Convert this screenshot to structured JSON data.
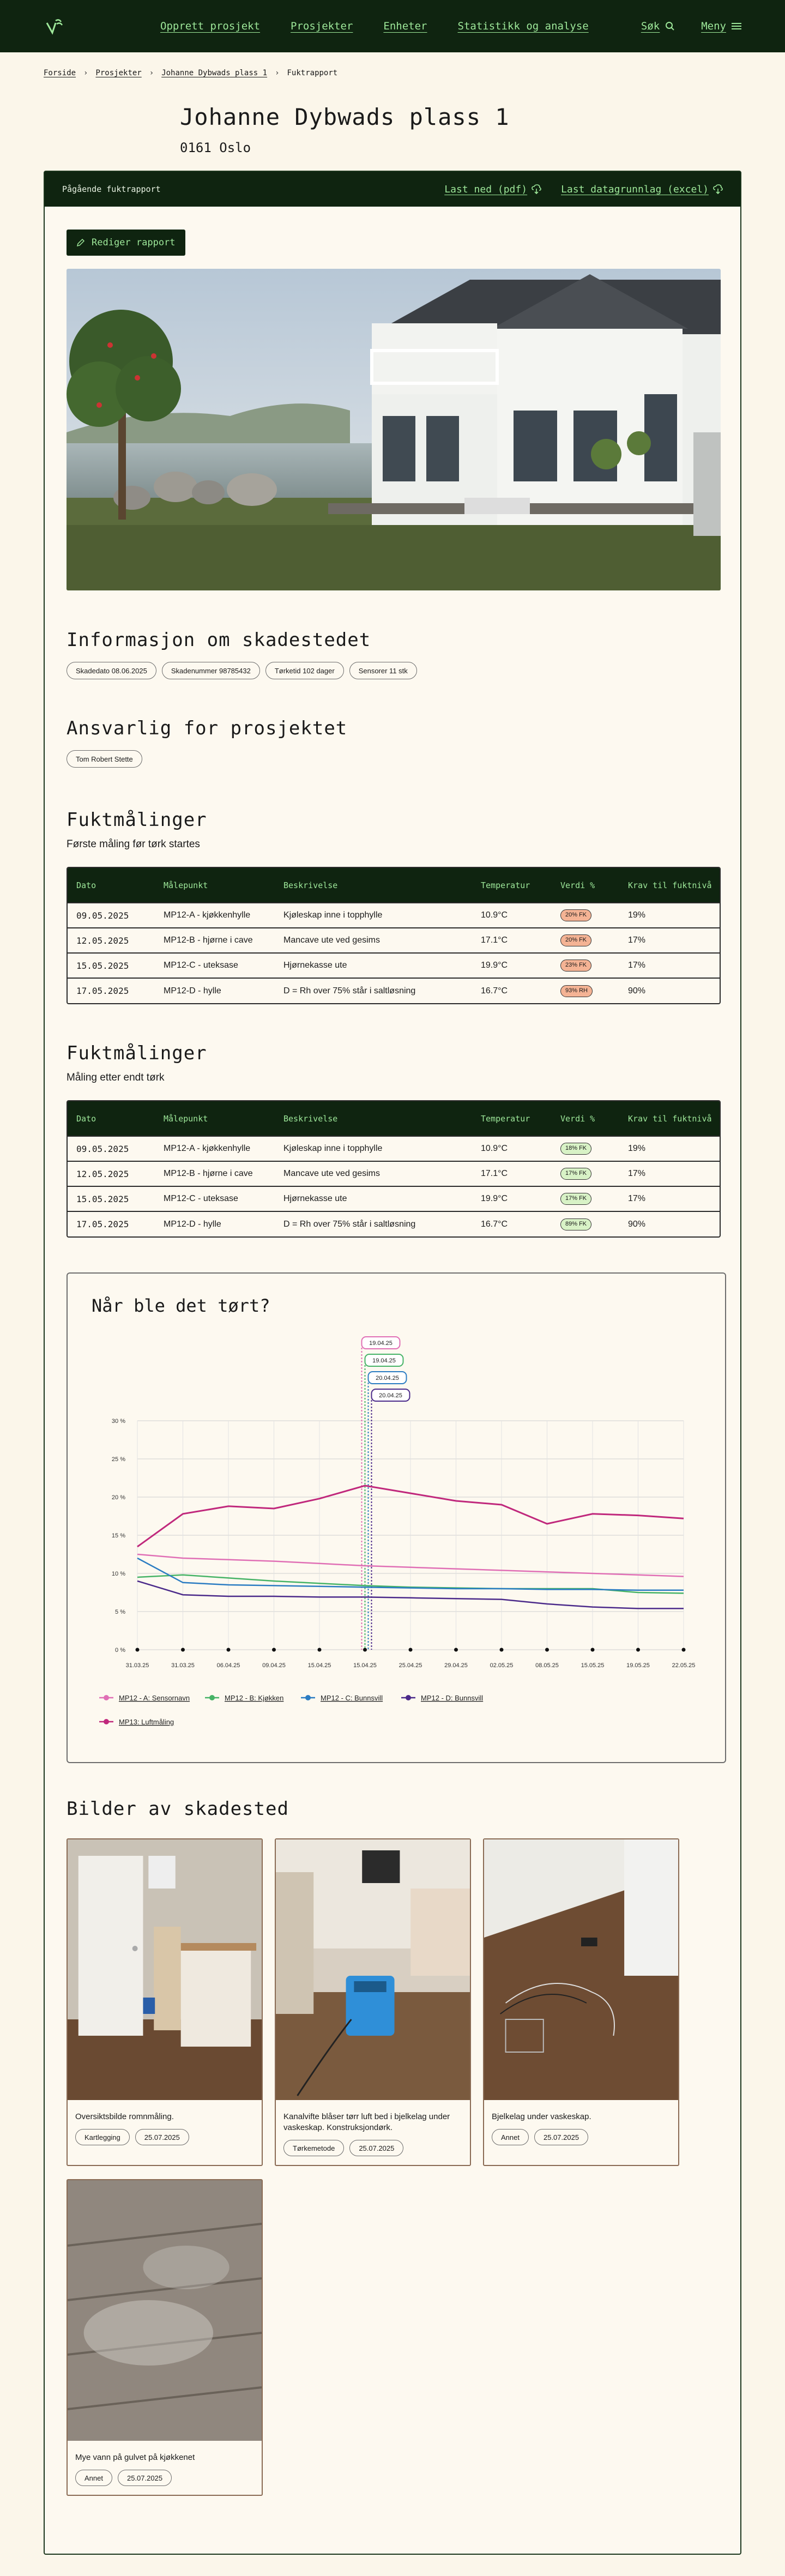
{
  "nav": {
    "items": [
      "Opprett prosjekt",
      "Prosjekter",
      "Enheter",
      "Statistikk og analyse"
    ],
    "search": "Søk",
    "menu": "Meny"
  },
  "breadcrumb": [
    "Forside",
    "Prosjekter",
    "Johanne Dybwads plass 1",
    "Fuktrapport"
  ],
  "project": {
    "title": "Johanne Dybwads plass 1",
    "address": "0161 Oslo"
  },
  "report_bar": {
    "label": "Pågående fuktrapport",
    "download_pdf": "Last ned (pdf)",
    "download_excel": "Last datagrunnlag (excel)"
  },
  "edit_button": "Rediger rapport",
  "info": {
    "title": "Informasjon om skadestedet",
    "chips": [
      "Skadedato 08.06.2025",
      "Skadenummer 98785432",
      "Tørketid 102 dager",
      "Sensorer 11 stk"
    ]
  },
  "responsible": {
    "title": "Ansvarlig for prosjektet",
    "chips": [
      "Tom Robert Stette"
    ]
  },
  "table_headers": [
    "Dato",
    "Målepunkt",
    "Beskrivelse",
    "Temperatur",
    "Verdi %",
    "Krav til fuktnivå"
  ],
  "before": {
    "title": "Fuktmålinger",
    "subtitle": "Første måling før tørk startes",
    "rows": [
      [
        "09.05.2025",
        "MP12-A - kjøkkenhylle",
        "Kjøleskap inne i topphylle",
        "10.9°C",
        "20% FK",
        "19%"
      ],
      [
        "12.05.2025",
        "MP12-B - hjørne i cave",
        "Mancave ute ved gesims",
        "17.1°C",
        "20% FK",
        "17%"
      ],
      [
        "15.05.2025",
        "MP12-C - uteksase",
        "Hjørnekasse ute",
        "19.9°C",
        "23% FK",
        "17%"
      ],
      [
        "17.05.2025",
        "MP12-D - hylle",
        "D = Rh over 75% står i saltløsning",
        "16.7°C",
        "93% RH",
        "90%"
      ]
    ]
  },
  "after": {
    "title": "Fuktmålinger",
    "subtitle": "Måling etter endt tørk",
    "rows": [
      [
        "09.05.2025",
        "MP12-A - kjøkkenhylle",
        "Kjøleskap inne i topphylle",
        "10.9°C",
        "18% FK",
        "19%"
      ],
      [
        "12.05.2025",
        "MP12-B - hjørne i cave",
        "Mancave ute ved gesims",
        "17.1°C",
        "17% FK",
        "17%"
      ],
      [
        "15.05.2025",
        "MP12-C - uteksase",
        "Hjørnekasse ute",
        "19.9°C",
        "17% FK",
        "17%"
      ],
      [
        "17.05.2025",
        "MP12-D - hylle",
        "D = Rh over 75% står i saltløsning",
        "16.7°C",
        "89% FK",
        "90%"
      ]
    ]
  },
  "colors": {
    "dark_green": "#0f2410",
    "accent_green": "#9ee89a",
    "badge_red": "#f4b394",
    "badge_green": "#d8f2c6"
  },
  "chart_data": {
    "type": "line",
    "title": "Når ble det tørt?",
    "ylim": [
      0,
      30
    ],
    "yticks": [
      "0 %",
      "5 %",
      "10 %",
      "15 %",
      "20 %",
      "25 %",
      "30 %"
    ],
    "x_labels": [
      "31.03.25",
      "31.03.25",
      "06.04.25",
      "09.04.25",
      "15.04.25",
      "15.04.25",
      "25.04.25",
      "29.04.25",
      "02.05.25",
      "08.05.25",
      "15.05.25",
      "19.05.25",
      "22.05.25"
    ],
    "grid": true,
    "legend_position": "bottom",
    "flags": [
      "19.04.25",
      "19.04.25",
      "20.04.25",
      "20.04.25"
    ],
    "series": [
      {
        "name": "MP12 - A: Sensornavn",
        "color": "#e06fb5",
        "values": [
          12.5,
          12,
          11.8,
          11.6,
          11.3,
          11,
          10.8,
          10.6,
          10.4,
          10.2,
          10,
          9.8,
          9.6
        ]
      },
      {
        "name": "MP12 - B: Kjøkken",
        "color": "#46b366",
        "values": [
          9.5,
          9.8,
          9.4,
          9.0,
          8.7,
          8.4,
          8.2,
          8.1,
          8.0,
          8.0,
          8.0,
          7.5,
          7.4
        ]
      },
      {
        "name": "MP12 - C: Bunnsvill",
        "color": "#2b7cc2",
        "values": [
          12,
          8.8,
          8.5,
          8.4,
          8.3,
          8.2,
          8.1,
          8.0,
          8.0,
          7.9,
          7.9,
          7.8,
          7.8
        ]
      },
      {
        "name": "MP12 - D: Bunnsvill",
        "color": "#4b2a8a",
        "values": [
          9,
          7.2,
          7.0,
          7.0,
          6.9,
          6.9,
          6.8,
          6.7,
          6.6,
          6.0,
          5.6,
          5.4,
          5.4
        ]
      },
      {
        "name": "MP13: Luftmåling",
        "color": "#c0287c",
        "values": [
          13.5,
          17.8,
          18.8,
          18.5,
          19.8,
          21.5,
          20.5,
          19.5,
          19,
          16.5,
          17.8,
          17.6,
          17.2
        ]
      }
    ]
  },
  "photos": {
    "title": "Bilder av skadested",
    "items": [
      {
        "caption": "Oversiktsbilde romnmåling.",
        "tags": [
          "Kartlegging",
          "25.07.2025"
        ]
      },
      {
        "caption": "Kanalvifte blåser tørr luft bed i bjelkelag under vaskeskap. Konstruksjondørk.",
        "tags": [
          "Tørkemetode",
          "25.07.2025"
        ]
      },
      {
        "caption": "Bjelkelag under vaskeskap.",
        "tags": [
          "Annet",
          "25.07.2025"
        ]
      },
      {
        "caption": "Mye vann på gulvet på kjøkkenet",
        "tags": [
          "Annet",
          "25.07.2025"
        ]
      }
    ]
  }
}
